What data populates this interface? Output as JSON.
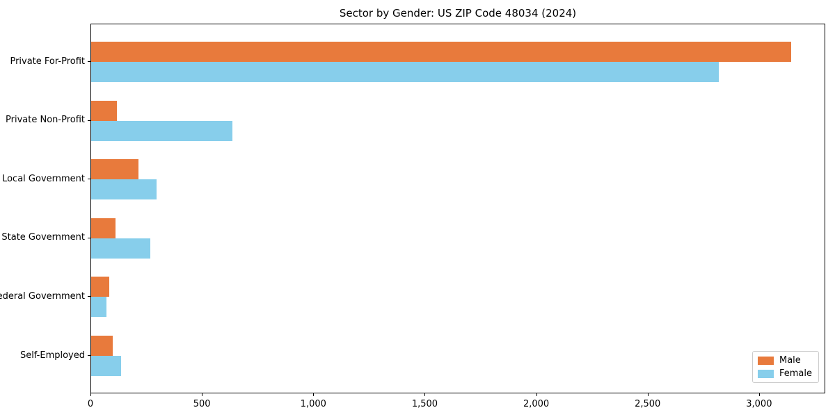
{
  "title": "Sector by Gender: US ZIP Code 48034 (2024)",
  "colors": {
    "male": "#E87A3C",
    "female": "#87CEEB",
    "axis": "#000000",
    "legend_border": "#CCCCCC",
    "background": "#FFFFFF"
  },
  "legend": {
    "position": "lower right",
    "items": [
      {
        "label": "Male"
      },
      {
        "label": "Female"
      }
    ]
  },
  "chart_data": {
    "type": "bar",
    "orientation": "horizontal",
    "title": "Sector by Gender: US ZIP Code 48034 (2024)",
    "categories": [
      "Private For-Profit",
      "Private Non-Profit",
      "Local Government",
      "State Government",
      "Federal Government",
      "Self-Employed"
    ],
    "series": [
      {
        "name": "Male",
        "color": "#E87A3C",
        "values": [
          3140,
          114,
          211,
          108,
          80,
          97
        ]
      },
      {
        "name": "Female",
        "color": "#87CEEB",
        "values": [
          2816,
          635,
          293,
          266,
          68,
          134
        ]
      }
    ],
    "xlabel": "",
    "ylabel": "",
    "xlim": [
      0,
      3297
    ],
    "x_ticks": [
      0,
      500,
      1000,
      1500,
      2000,
      2500,
      3000
    ],
    "x_tick_labels": [
      "0",
      "500",
      "1,000",
      "1,500",
      "2,000",
      "2,500",
      "3,000"
    ],
    "grid": false,
    "legend_position": "lower right"
  }
}
